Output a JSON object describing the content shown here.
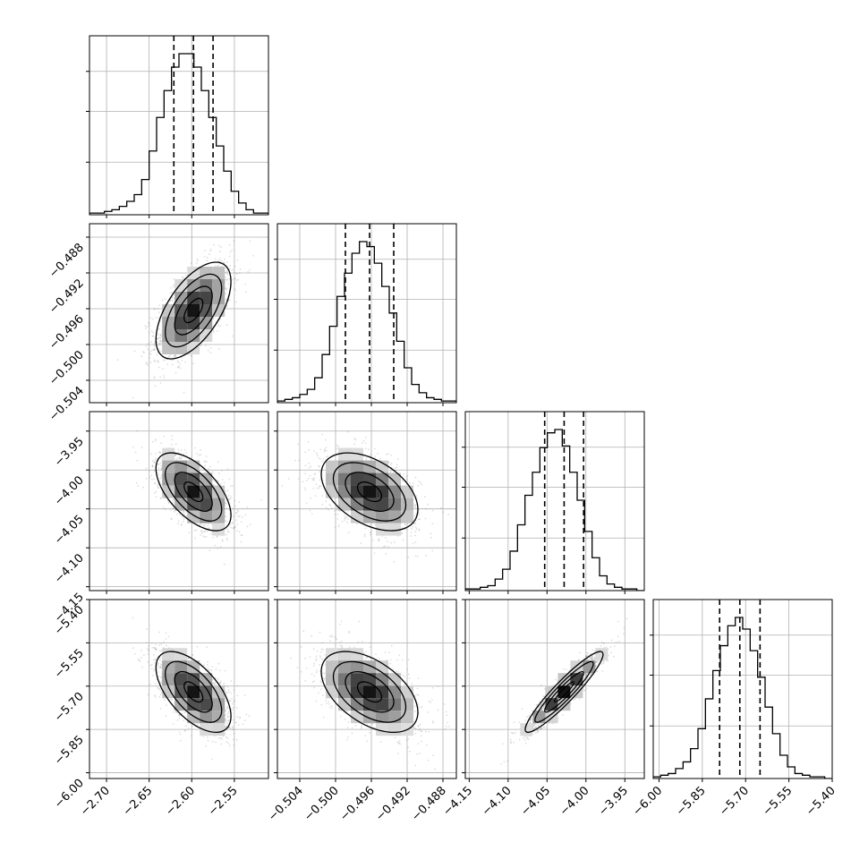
{
  "chart_data": {
    "type": "corner",
    "style": {
      "grid": true,
      "quantile_lines": "dashed",
      "scatter_color": "#888888",
      "contour_color": "#000000",
      "density_colormap": "greys"
    },
    "parameters": [
      {
        "ticks": [
          "−2.70",
          "−2.65",
          "−2.60",
          "−2.55"
        ],
        "tick_values": [
          -2.7,
          -2.65,
          -2.6,
          -2.55
        ],
        "range": [
          -2.72,
          -2.51
        ],
        "median": -2.598,
        "q16": -2.621,
        "q84": -2.575,
        "sigma": 0.022,
        "hist": [
          1,
          1,
          2,
          3,
          5,
          8,
          12,
          21,
          38,
          58,
          74,
          88,
          96,
          96,
          88,
          74,
          58,
          41,
          26,
          14,
          7,
          3,
          1,
          1
        ]
      },
      {
        "ticks": [
          "−0.504",
          "−0.500",
          "−0.496",
          "−0.492",
          "−0.488"
        ],
        "tick_values": [
          -0.504,
          -0.5,
          -0.496,
          -0.492,
          -0.488
        ],
        "range": [
          -0.5065,
          -0.4865
        ],
        "median": -0.4962,
        "q16": -0.4989,
        "q84": -0.4935,
        "sigma": 0.0027,
        "hist": [
          1,
          2,
          3,
          5,
          8,
          15,
          29,
          46,
          64,
          78,
          90,
          97,
          94,
          84,
          70,
          54,
          37,
          21,
          11,
          6,
          3,
          2,
          1,
          1
        ]
      },
      {
        "ticks": [
          "−4.15",
          "−4.10",
          "−4.05",
          "−4.00",
          "−3.95"
        ],
        "tick_values": [
          -4.15,
          -4.1,
          -4.05,
          -4.0,
          -3.95
        ],
        "range": [
          -4.155,
          -3.925
        ],
        "median": -4.028,
        "q16": -4.053,
        "q84": -4.003,
        "sigma": 0.025,
        "hist": [
          1,
          1,
          2,
          3,
          7,
          13,
          24,
          40,
          58,
          72,
          87,
          96,
          98,
          88,
          72,
          55,
          36,
          20,
          9,
          4,
          2,
          1,
          1,
          0
        ]
      },
      {
        "ticks": [
          "−6.00",
          "−5.85",
          "−5.70",
          "−5.55",
          "−5.40"
        ],
        "tick_values": [
          -6.0,
          -5.85,
          -5.7,
          -5.55,
          -5.4
        ],
        "range": [
          -6.02,
          -5.4
        ],
        "median": -5.72,
        "q16": -5.79,
        "q84": -5.65,
        "sigma": 0.07,
        "hist": [
          1,
          2,
          3,
          6,
          10,
          18,
          30,
          48,
          65,
          80,
          92,
          97,
          90,
          77,
          61,
          43,
          27,
          14,
          7,
          3,
          2,
          1,
          1,
          0
        ]
      }
    ],
    "correlations": [
      [
        1.0,
        0.6,
        -0.6,
        -0.6
      ],
      [
        0.6,
        1.0,
        -0.45,
        -0.5
      ],
      [
        -0.6,
        -0.45,
        1.0,
        0.93
      ],
      [
        -0.6,
        -0.5,
        0.93,
        1.0
      ]
    ]
  }
}
